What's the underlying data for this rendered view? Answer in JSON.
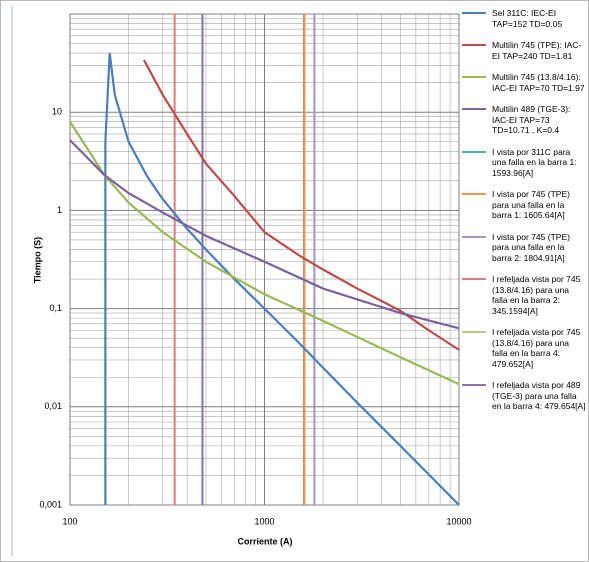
{
  "chart_data": {
    "type": "line",
    "x_label": "Corriente (A)",
    "y_label": "Tiempo (S)",
    "log_x": true,
    "log_y": true,
    "grid": true,
    "minor_grid": true,
    "legend": "right",
    "xlim": [
      100,
      10000
    ],
    "xticks": [
      100,
      1000,
      10000
    ],
    "ylim": [
      0.001,
      100
    ],
    "yticks": [
      {
        "value": 0.001,
        "label": "0,001"
      },
      {
        "value": 0.01,
        "label": "0,01"
      },
      {
        "value": 0.1,
        "label": "0,1"
      },
      1,
      10
    ],
    "series": [
      {
        "name": "Sel 311C: IEC-EI TAP=152 TD=0.05",
        "color": "#4a7ebb",
        "x": [
          152,
          152,
          160,
          170,
          200,
          250,
          300,
          400,
          500,
          700,
          1000,
          1500,
          2000,
          3000,
          5000,
          10000
        ],
        "values": [
          0.001,
          5,
          40,
          15,
          5,
          2.2,
          1.3,
          0.65,
          0.4,
          0.2,
          0.1,
          0.045,
          0.025,
          0.011,
          0.004,
          0.001
        ]
      },
      {
        "name": "Multilin 745 (TPE): IAC-EI TAP=240 TD=1.81",
        "color": "#be4b48",
        "x": [
          240,
          300,
          400,
          500,
          700,
          1000,
          1500,
          2000,
          3000,
          5000,
          7000,
          10000
        ],
        "values": [
          34,
          15,
          6,
          3,
          1.4,
          0.6,
          0.35,
          0.25,
          0.16,
          0.095,
          0.06,
          0.038
        ]
      },
      {
        "name": "Multilin 745 (13.8/4.16): IAC-EI TAP=70 TD=1.97",
        "color": "#98b954",
        "x": [
          100,
          150,
          200,
          300,
          500,
          1000,
          2000,
          5000,
          10000
        ],
        "values": [
          8,
          2.3,
          1.2,
          0.6,
          0.3,
          0.14,
          0.075,
          0.032,
          0.017
        ]
      },
      {
        "name": "Multilin 489 (TGE-3): IAC-EI TAP=73 TD=10.71 , K=0.4",
        "color": "#7d60a0",
        "x": [
          100,
          150,
          200,
          300,
          500,
          1000,
          2000,
          5000,
          10000
        ],
        "values": [
          5.2,
          2.3,
          1.5,
          0.95,
          0.55,
          0.3,
          0.16,
          0.09,
          0.063
        ]
      }
    ],
    "vlines": [
      {
        "name": "I vista por 311C para una falla en la barra 1:   1593.96[A]",
        "color": "#4bacc6",
        "x": 1593.96
      },
      {
        "name": "I vista por 745 (TPE) para una falla en la barra 1:   1605.64[A]",
        "color": "#f79646",
        "x": 1605.64
      },
      {
        "name": "I vista por 745 (TPE) para una falla en la barra 2:   1804.91[A]",
        "color": "#a393c6",
        "x": 1804.91
      },
      {
        "name": "I refeljada vista por 745 (13.8/4.16) para una falla en la barra 2:   345.1594[A]",
        "color": "#e07b7b",
        "x": 345.1594
      },
      {
        "name": "I refeljada vista por 745 (13.8/4.16) para una falla en la barra 4:   479.652[A]",
        "color": "#b5cf7f",
        "x": 479.652
      },
      {
        "name": "I refeljada vista por 489 (TGE-3) para una falla en la barra 4: 479.654[A]",
        "color": "#8e72b0",
        "x": 479.654
      }
    ]
  }
}
